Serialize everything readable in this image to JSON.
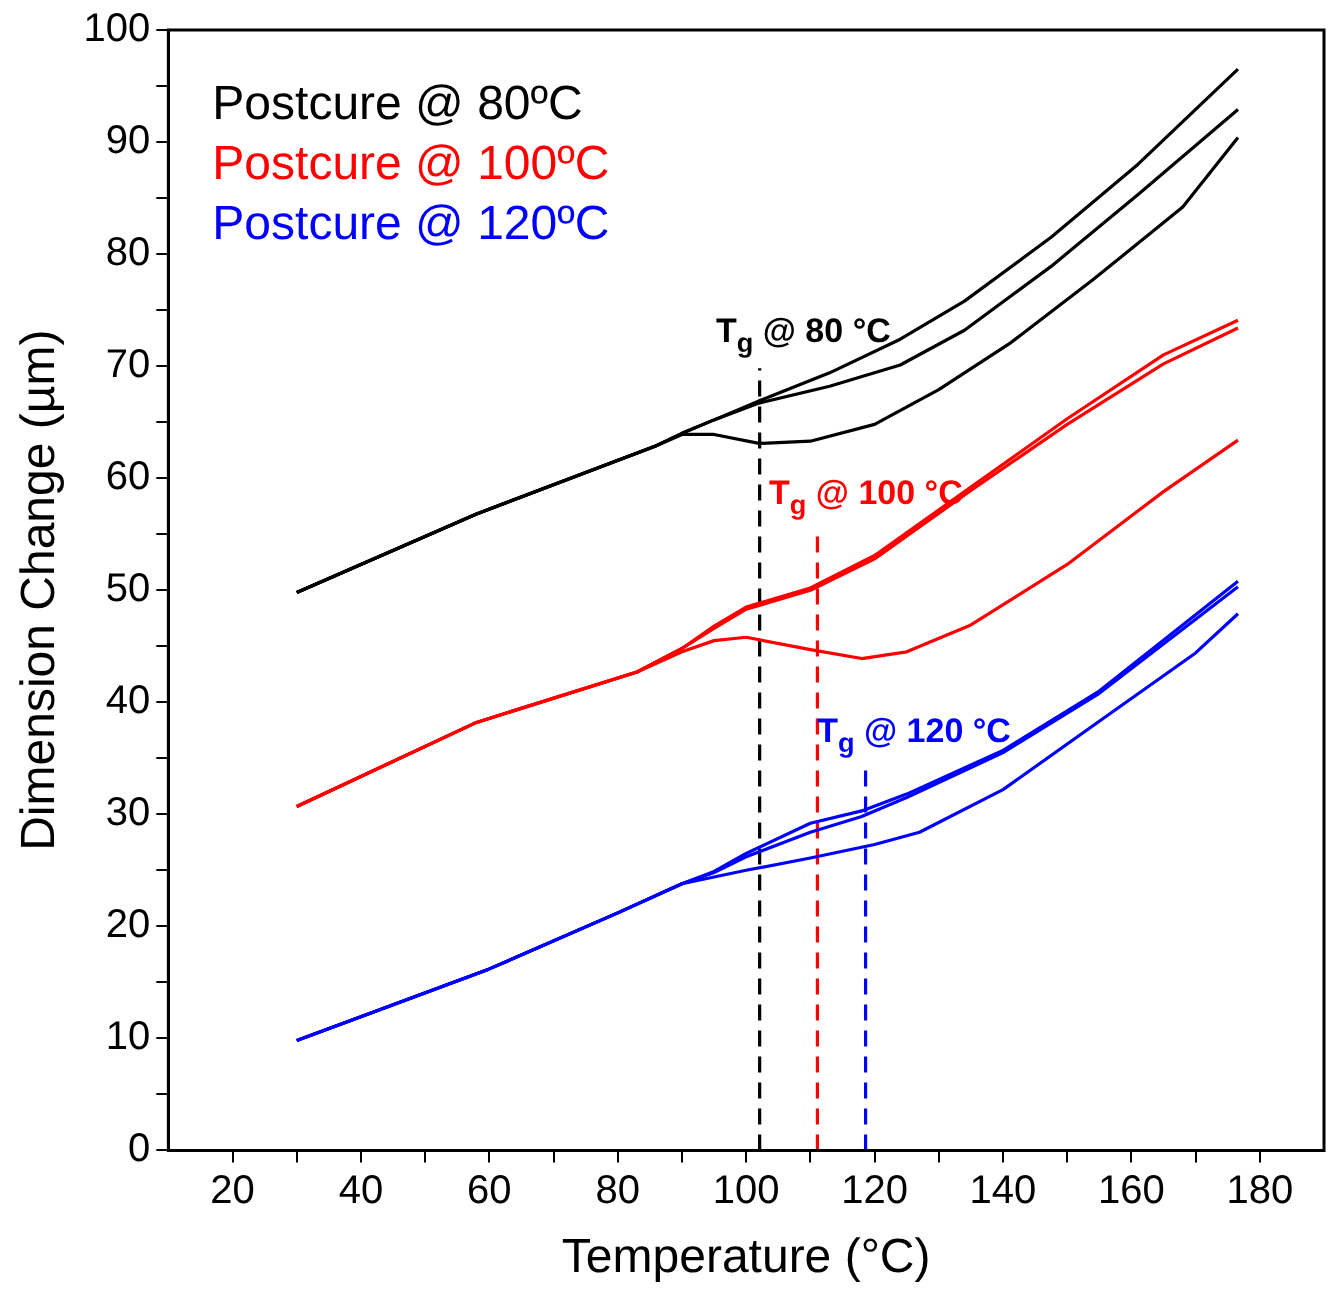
{
  "chart_data": {
    "type": "line",
    "xlabel": "Temperature (°C)",
    "ylabel": "Dimension Change (µm)",
    "xlim": [
      10,
      190
    ],
    "ylim": [
      0,
      100
    ],
    "xticks": [
      20,
      {
        "value": 30,
        "label": null
      },
      40,
      {
        "value": 50,
        "label": null
      },
      60,
      {
        "value": 70,
        "label": null
      },
      80,
      {
        "value": 90,
        "label": null
      },
      100,
      {
        "value": 110,
        "label": null
      },
      120,
      {
        "value": 130,
        "label": null
      },
      140,
      {
        "value": 150,
        "label": null
      },
      160,
      {
        "value": 170,
        "label": null
      },
      180
    ],
    "yticks": [
      0,
      {
        "value": 5,
        "label": null
      },
      10,
      {
        "value": 15,
        "label": null
      },
      20,
      {
        "value": 25,
        "label": null
      },
      30,
      {
        "value": 35,
        "label": null
      },
      40,
      {
        "value": 45,
        "label": null
      },
      50,
      {
        "value": 55,
        "label": null
      },
      60,
      {
        "value": 65,
        "label": null
      },
      70,
      {
        "value": 75,
        "label": null
      },
      80,
      {
        "value": 85,
        "label": null
      },
      90,
      {
        "value": 95,
        "label": null
      },
      100
    ],
    "grid": false,
    "legend": "top left",
    "marker": "none",
    "line_style": "solid",
    "series": [
      {
        "name": "Postcure @ 80ºC",
        "color": "#000000",
        "x": [
          30,
          58,
          86,
          90,
          95,
          102,
          110,
          120,
          130,
          141,
          154,
          168,
          176.6
        ],
        "values": [
          49.8,
          56.8,
          62.9,
          63.9,
          63.9,
          63.1,
          63.3,
          64.8,
          67.9,
          72,
          77.7,
          84.2,
          90.4
        ]
      },
      {
        "color": "#000000",
        "x": [
          30,
          58,
          86,
          90,
          95,
          102,
          113,
          124,
          134,
          147.5,
          161,
          176.6
        ],
        "values": [
          49.8,
          56.8,
          62.9,
          64,
          65.2,
          66.7,
          68.2,
          70.1,
          73.2,
          78.9,
          85.3,
          92.9
        ]
      },
      {
        "color": "#000000",
        "x": [
          30,
          58,
          86,
          90,
          95,
          102,
          113,
          124,
          134,
          147.5,
          161,
          176.6
        ],
        "values": [
          49.8,
          56.8,
          62.9,
          64,
          65.2,
          66.9,
          69.4,
          72.4,
          75.8,
          81.5,
          88,
          96.5
        ]
      },
      {
        "name": "Postcure @ 100ºC",
        "color": "#ff0000",
        "x": [
          30,
          58,
          83,
          90,
          95,
          100,
          110,
          118,
          125,
          135,
          150,
          165,
          176.6
        ],
        "values": [
          30.7,
          38.2,
          42.7,
          44.5,
          45.5,
          45.8,
          44.7,
          43.9,
          44.5,
          46.9,
          52.3,
          58.8,
          63.4
        ]
      },
      {
        "color": "#ff0000",
        "x": [
          30,
          58,
          83,
          90,
          95,
          100,
          110,
          120,
          135,
          150,
          165,
          176.6
        ],
        "values": [
          30.7,
          38.2,
          42.7,
          44.8,
          46.8,
          48.5,
          50.2,
          53.1,
          59.2,
          65.3,
          71,
          74.1
        ]
      },
      {
        "color": "#ff0000",
        "x": [
          30,
          58,
          83,
          90,
          95,
          100,
          110,
          120,
          135,
          150,
          165,
          176.6
        ],
        "values": [
          30.7,
          38.2,
          42.7,
          44.8,
          46.6,
          48.3,
          50,
          52.8,
          58.9,
          64.8,
          70.2,
          73.4
        ]
      },
      {
        "name": "Postcure @ 120ºC",
        "color": "#0000ff",
        "x": [
          30,
          60,
          80,
          90,
          95,
          100,
          110,
          120,
          127,
          140,
          155,
          170,
          176.6
        ],
        "values": [
          9.8,
          16.2,
          21.2,
          23.8,
          24.4,
          25,
          26.1,
          27.3,
          28.4,
          32.2,
          38.3,
          44.4,
          47.9
        ]
      },
      {
        "color": "#0000ff",
        "x": [
          30,
          60,
          80,
          90,
          95,
          100,
          110,
          118,
          125,
          140,
          155,
          176.6
        ],
        "values": [
          9.8,
          16.2,
          21.2,
          23.8,
          24.9,
          26.5,
          29.2,
          30.3,
          31.8,
          35.7,
          41,
          50.8
        ]
      },
      {
        "color": "#0000ff",
        "x": [
          30,
          60,
          80,
          90,
          95,
          100,
          110,
          118,
          125,
          140,
          155,
          176.6
        ],
        "values": [
          9.8,
          16.2,
          21.2,
          23.8,
          24.8,
          26.2,
          28.4,
          29.8,
          31.5,
          35.5,
          40.8,
          50.3
        ]
      },
      {
        "color": "#000000",
        "line_style": "dashed",
        "x": [
          102.1,
          102.1
        ],
        "values": [
          0,
          69.8
        ]
      },
      {
        "color": "#ff0000",
        "line_style": "dashed",
        "x": [
          111.1,
          111.1
        ],
        "values": [
          0,
          55.3
        ]
      },
      {
        "color": "#0000ff",
        "line_style": "dashed",
        "x": [
          118.6,
          118.6
        ],
        "values": [
          0,
          34.1
        ]
      }
    ],
    "annotations": [
      {
        "text": "T$_{g}$ @ 80 °C",
        "x": 102.1,
        "y": 69.8
      },
      {
        "text": "T$_{g}$ @ 100 °C",
        "x": 111.1,
        "y": 55.3
      },
      {
        "text": "T$_{g}$ @ 120 °C",
        "x": 118.6,
        "y": 34.1
      }
    ]
  }
}
